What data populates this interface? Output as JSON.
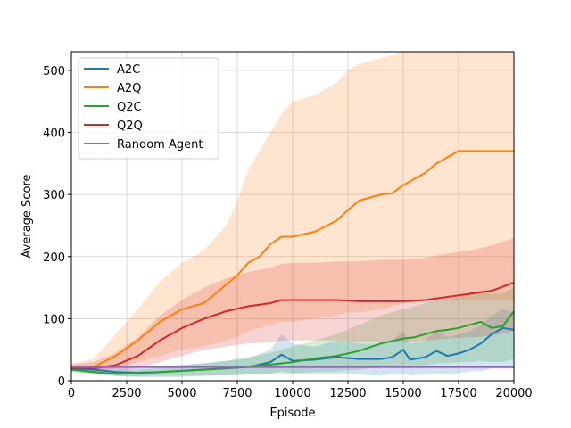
{
  "chart_data": {
    "type": "line",
    "title": "",
    "xlabel": "Episode",
    "ylabel": "Average Score",
    "xlim": [
      0,
      20000
    ],
    "ylim": [
      0,
      530
    ],
    "xticks": [
      0,
      2500,
      5000,
      7500,
      10000,
      12500,
      15000,
      17500,
      20000
    ],
    "yticks": [
      0,
      100,
      200,
      300,
      400,
      500
    ],
    "grid": true,
    "legend_position": "upper-left",
    "series": [
      {
        "name": "A2C",
        "color": "#1f77b4",
        "x": [
          0,
          1000,
          2000,
          3000,
          4000,
          5000,
          6000,
          7000,
          8000,
          9000,
          9500,
          10000,
          11000,
          12000,
          13000,
          14000,
          14500,
          15000,
          15300,
          16000,
          16500,
          17000,
          17500,
          18000,
          18500,
          19000,
          19500,
          20000
        ],
        "y": [
          20,
          18,
          14,
          13,
          14,
          16,
          18,
          20,
          22,
          30,
          42,
          32,
          34,
          38,
          35,
          35,
          38,
          50,
          34,
          38,
          48,
          40,
          44,
          50,
          60,
          75,
          85,
          82
        ],
        "band": [
          [
            15,
            25
          ],
          [
            12,
            24
          ],
          [
            8,
            20
          ],
          [
            6,
            20
          ],
          [
            6,
            22
          ],
          [
            6,
            26
          ],
          [
            8,
            28
          ],
          [
            8,
            32
          ],
          [
            10,
            36
          ],
          [
            12,
            50
          ],
          [
            15,
            75
          ],
          [
            12,
            60
          ],
          [
            10,
            55
          ],
          [
            10,
            65
          ],
          [
            10,
            60
          ],
          [
            8,
            60
          ],
          [
            10,
            65
          ],
          [
            12,
            80
          ],
          [
            8,
            60
          ],
          [
            10,
            65
          ],
          [
            12,
            80
          ],
          [
            10,
            70
          ],
          [
            12,
            75
          ],
          [
            15,
            80
          ],
          [
            15,
            90
          ],
          [
            20,
            105
          ],
          [
            20,
            115
          ],
          [
            20,
            110
          ]
        ]
      },
      {
        "name": "A2Q",
        "color": "#ff7f0e",
        "x": [
          0,
          1000,
          2000,
          3000,
          4000,
          5000,
          6000,
          7000,
          7500,
          8000,
          8500,
          9000,
          9500,
          10000,
          11000,
          12000,
          12500,
          13000,
          14000,
          14500,
          15000,
          15500,
          16000,
          16500,
          17000,
          17500,
          18000,
          19000,
          20000
        ],
        "y": [
          20,
          22,
          40,
          65,
          95,
          115,
          125,
          155,
          170,
          190,
          200,
          220,
          232,
          232,
          240,
          258,
          275,
          290,
          300,
          302,
          315,
          325,
          335,
          350,
          360,
          370,
          370,
          370,
          370
        ],
        "band": [
          [
            16,
            28
          ],
          [
            15,
            35
          ],
          [
            20,
            75
          ],
          [
            30,
            115
          ],
          [
            40,
            160
          ],
          [
            50,
            190
          ],
          [
            55,
            210
          ],
          [
            65,
            250
          ],
          [
            70,
            290
          ],
          [
            80,
            340
          ],
          [
            85,
            370
          ],
          [
            90,
            400
          ],
          [
            95,
            430
          ],
          [
            95,
            450
          ],
          [
            100,
            460
          ],
          [
            105,
            480
          ],
          [
            110,
            500
          ],
          [
            110,
            510
          ],
          [
            115,
            520
          ],
          [
            120,
            525
          ],
          [
            125,
            530
          ],
          [
            125,
            530
          ],
          [
            130,
            530
          ],
          [
            130,
            530
          ],
          [
            130,
            530
          ],
          [
            130,
            530
          ],
          [
            130,
            530
          ],
          [
            130,
            530
          ],
          [
            130,
            530
          ]
        ]
      },
      {
        "name": "Q2C",
        "color": "#2ca02c",
        "x": [
          0,
          1000,
          2000,
          3000,
          4000,
          5000,
          6000,
          7000,
          8000,
          9000,
          10000,
          11000,
          12000,
          13000,
          14000,
          15000,
          15500,
          16000,
          16500,
          17000,
          17500,
          18000,
          18500,
          19000,
          19500,
          20000
        ],
        "y": [
          18,
          14,
          11,
          12,
          14,
          16,
          18,
          20,
          23,
          26,
          30,
          36,
          40,
          48,
          60,
          68,
          70,
          75,
          80,
          82,
          85,
          90,
          95,
          85,
          88,
          112
        ],
        "band": [
          [
            14,
            24
          ],
          [
            10,
            20
          ],
          [
            7,
            16
          ],
          [
            7,
            18
          ],
          [
            8,
            20
          ],
          [
            8,
            24
          ],
          [
            8,
            28
          ],
          [
            9,
            32
          ],
          [
            10,
            38
          ],
          [
            10,
            45
          ],
          [
            12,
            55
          ],
          [
            14,
            65
          ],
          [
            15,
            75
          ],
          [
            18,
            90
          ],
          [
            22,
            105
          ],
          [
            25,
            115
          ],
          [
            25,
            120
          ],
          [
            25,
            125
          ],
          [
            28,
            130
          ],
          [
            28,
            132
          ],
          [
            30,
            135
          ],
          [
            30,
            140
          ],
          [
            32,
            145
          ],
          [
            30,
            140
          ],
          [
            30,
            140
          ],
          [
            35,
            150
          ]
        ]
      },
      {
        "name": "Q2Q",
        "color": "#d62728",
        "x": [
          0,
          1000,
          2000,
          3000,
          4000,
          5000,
          6000,
          7000,
          8000,
          9000,
          9500,
          10000,
          11000,
          12000,
          13000,
          14000,
          15000,
          16000,
          17000,
          18000,
          19000,
          20000
        ],
        "y": [
          20,
          20,
          25,
          40,
          65,
          85,
          100,
          112,
          120,
          125,
          130,
          130,
          130,
          130,
          128,
          128,
          128,
          130,
          135,
          140,
          145,
          158
        ],
        "band": [
          [
            16,
            26
          ],
          [
            15,
            30
          ],
          [
            15,
            45
          ],
          [
            20,
            70
          ],
          [
            30,
            105
          ],
          [
            40,
            130
          ],
          [
            50,
            150
          ],
          [
            55,
            165
          ],
          [
            60,
            175
          ],
          [
            62,
            182
          ],
          [
            65,
            188
          ],
          [
            65,
            190
          ],
          [
            65,
            190
          ],
          [
            65,
            192
          ],
          [
            62,
            192
          ],
          [
            62,
            195
          ],
          [
            62,
            195
          ],
          [
            65,
            198
          ],
          [
            68,
            205
          ],
          [
            70,
            210
          ],
          [
            72,
            218
          ],
          [
            80,
            230
          ]
        ]
      },
      {
        "name": "Random Agent",
        "color": "#9467bd",
        "x": [
          0,
          20000
        ],
        "y": [
          22,
          22
        ],
        "band": [
          [
            20,
            24
          ],
          [
            20,
            24
          ]
        ]
      }
    ]
  }
}
